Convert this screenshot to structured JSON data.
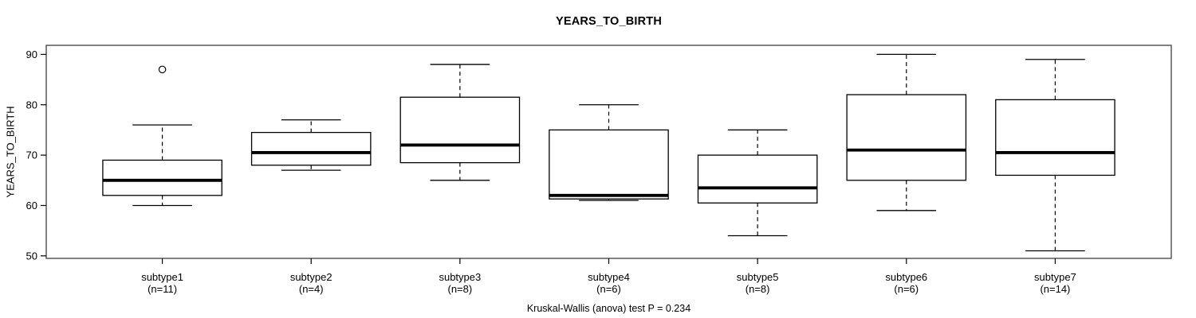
{
  "chart_data": {
    "type": "boxplot",
    "title": "YEARS_TO_BIRTH",
    "xlabel": "",
    "ylabel": "YEARS_TO_BIRTH",
    "annotation": "Kruskal-Wallis (anova) test P = 0.234",
    "ylim": [
      49.5,
      91.8
    ],
    "yticks": [
      50,
      60,
      70,
      80,
      90
    ],
    "grid": false,
    "legend": "none",
    "categories": [
      "subtype1",
      "subtype2",
      "subtype3",
      "subtype4",
      "subtype5",
      "subtype6",
      "subtype7"
    ],
    "counts": [
      "(n=11)",
      "(n=4)",
      "(n=8)",
      "(n=6)",
      "(n=8)",
      "(n=6)",
      "(n=14)"
    ],
    "series": [
      {
        "name": "subtype1",
        "n": 11,
        "whisker_low": 60,
        "q1": 62,
        "median": 65,
        "q3": 69,
        "whisker_high": 76,
        "outliers": [
          87
        ]
      },
      {
        "name": "subtype2",
        "n": 4,
        "whisker_low": 67,
        "q1": 68,
        "median": 70.5,
        "q3": 74.5,
        "whisker_high": 77,
        "outliers": []
      },
      {
        "name": "subtype3",
        "n": 8,
        "whisker_low": 65,
        "q1": 68.5,
        "median": 72,
        "q3": 81.5,
        "whisker_high": 88,
        "outliers": []
      },
      {
        "name": "subtype4",
        "n": 6,
        "whisker_low": 61,
        "q1": 61.3,
        "median": 62,
        "q3": 75,
        "whisker_high": 80,
        "outliers": []
      },
      {
        "name": "subtype5",
        "n": 8,
        "whisker_low": 54,
        "q1": 60.5,
        "median": 63.5,
        "q3": 70,
        "whisker_high": 75,
        "outliers": []
      },
      {
        "name": "subtype6",
        "n": 6,
        "whisker_low": 59,
        "q1": 65,
        "median": 71,
        "q3": 82,
        "whisker_high": 90,
        "outliers": []
      },
      {
        "name": "subtype7",
        "n": 14,
        "whisker_low": 51,
        "q1": 66,
        "median": 70.5,
        "q3": 81,
        "whisker_high": 89,
        "outliers": []
      }
    ],
    "colors": {
      "box_fill": "#ffffff",
      "line": "#000000",
      "frame": "#3f3f3f",
      "text": "#000000",
      "background": "#ffffff"
    }
  }
}
